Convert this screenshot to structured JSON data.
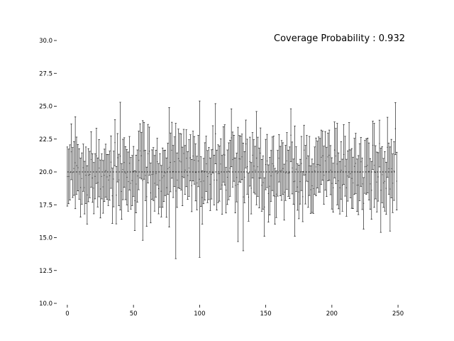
{
  "chart_data": {
    "type": "errorbar",
    "title": "",
    "xlabel": "",
    "ylabel": "",
    "xlim": [
      -8,
      258
    ],
    "ylim": [
      10,
      30
    ],
    "xticks": [
      0,
      50,
      100,
      150,
      200,
      250
    ],
    "yticks": [
      10.0,
      12.5,
      15.0,
      17.5,
      20.0,
      22.5,
      25.0,
      27.5,
      30.0
    ],
    "xtick_labels": [
      "0",
      "50",
      "100",
      "150",
      "200",
      "250"
    ],
    "ytick_labels": [
      "10.0",
      "12.5",
      "15.0",
      "17.5",
      "20.0",
      "22.5",
      "25.0",
      "27.5",
      "30.0"
    ],
    "annotation": "Coverage Probability : 0.932",
    "grid": false,
    "n_intervals": 250,
    "center_value": 20.0,
    "interval_half_width_typical": 2.0,
    "interval_center_range": [
      16.0,
      24.0
    ],
    "colors": {
      "bars": "#000000",
      "axes": "#000000"
    },
    "representative_intervals": [
      {
        "x": 0,
        "lower": 17.4,
        "upper": 21.9
      },
      {
        "x": 6,
        "lower": 17.2,
        "upper": 24.2
      },
      {
        "x": 40,
        "lower": 17.1,
        "upper": 25.3
      },
      {
        "x": 57,
        "lower": 14.8,
        "upper": 23.9
      },
      {
        "x": 77,
        "lower": 15.8,
        "upper": 24.9
      },
      {
        "x": 82,
        "lower": 13.4,
        "upper": 23.7
      },
      {
        "x": 100,
        "lower": 13.5,
        "upper": 25.4
      },
      {
        "x": 129,
        "lower": 14.7,
        "upper": 23.4
      },
      {
        "x": 133,
        "lower": 14.0,
        "upper": 22.2
      },
      {
        "x": 143,
        "lower": 17.5,
        "upper": 24.6
      },
      {
        "x": 172,
        "lower": 15.1,
        "upper": 23.5
      },
      {
        "x": 204,
        "lower": 17.5,
        "upper": 23.7
      },
      {
        "x": 232,
        "lower": 17.3,
        "upper": 23.7
      },
      {
        "x": 237,
        "lower": 15.4,
        "upper": 21.8
      },
      {
        "x": 244,
        "lower": 15.5,
        "upper": 21.9
      },
      {
        "x": 249,
        "lower": 17.1,
        "upper": 21.5
      }
    ]
  }
}
